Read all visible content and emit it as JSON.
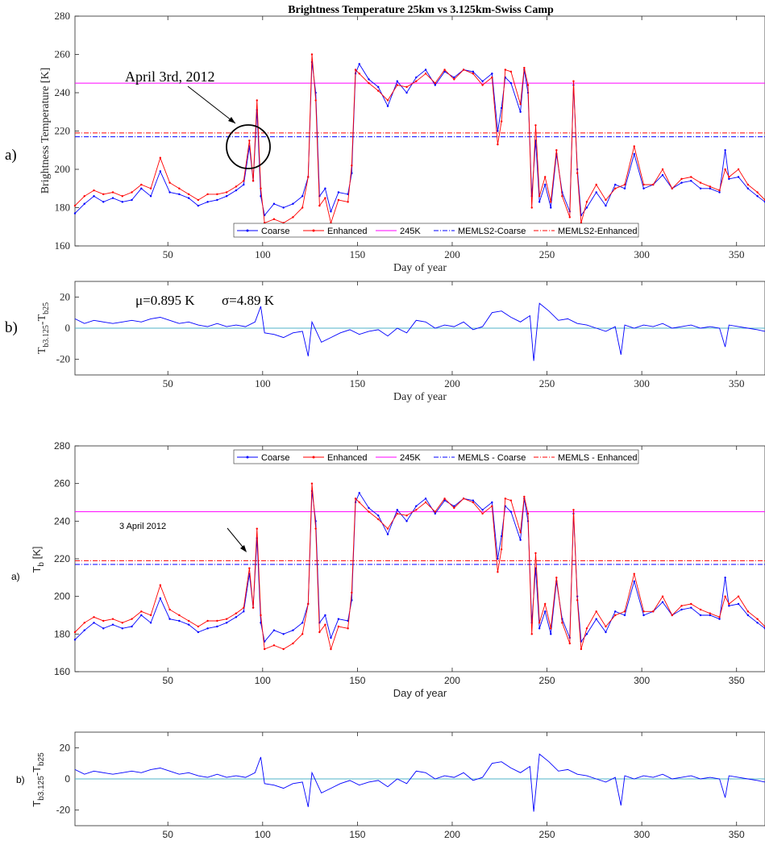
{
  "chart_data": [
    {
      "id": "top_tb",
      "type": "line",
      "title": "Brightness Temperature 25km vs 3.125km-Swiss Camp",
      "panel_label": "a)",
      "xlabel": "Day of year",
      "ylabel": "Brightness Temperature [K]",
      "xlim": [
        1,
        365
      ],
      "ylim": [
        160,
        280
      ],
      "xticks": [
        50,
        100,
        150,
        200,
        250,
        300,
        350
      ],
      "yticks": [
        160,
        180,
        200,
        220,
        240,
        260,
        280
      ],
      "annotation": {
        "text": "April 3rd, 2012",
        "x": 93,
        "y": 216
      },
      "legend": [
        "Coarse",
        "Enhanced",
        "245K",
        "MEMLS2-Coarse",
        "MEMLS2-Enhanced"
      ],
      "legend_position": "bottom-center",
      "colors": {
        "coarse": "#0000ff",
        "enhanced": "#ff0000",
        "ref245": "#ff00ff",
        "memls": "#0000ff",
        "memls_enh": "#ff0000"
      },
      "reference_lines": [
        {
          "name": "245K",
          "y": 245
        },
        {
          "name": "MEMLS2-Coarse",
          "y": 217
        },
        {
          "name": "MEMLS2-Enhanced",
          "y": 219
        }
      ],
      "series_ref": "shared_series"
    },
    {
      "id": "top_diff",
      "type": "line",
      "panel_label": "b)",
      "xlabel": "Day of year",
      "ylabel": "T_b3.125 - T_b25",
      "xlim": [
        1,
        365
      ],
      "ylim": [
        -30,
        30
      ],
      "xticks": [
        50,
        100,
        150,
        200,
        250,
        300,
        350
      ],
      "yticks": [
        -20,
        0,
        20
      ],
      "stats_mu": "μ=0.895 K",
      "stats_sigma": "σ=4.89 K",
      "series_ref": "shared_diff"
    },
    {
      "id": "bottom_tb",
      "type": "line",
      "panel_label": "a)",
      "xlabel": "Day of year",
      "ylabel": "T_b [K]",
      "xlim": [
        1,
        365
      ],
      "ylim": [
        160,
        280
      ],
      "xticks": [
        50,
        100,
        150,
        200,
        250,
        300,
        350
      ],
      "yticks": [
        160,
        180,
        200,
        220,
        240,
        260,
        280
      ],
      "annotation": {
        "text": "3 April 2012",
        "x": 93,
        "y": 221
      },
      "legend": [
        "Coarse",
        "Enhanced",
        "245K",
        "MEMLS - Coarse",
        "MEMLS - Enhanced"
      ],
      "legend_position": "top-center",
      "series_ref": "shared_series"
    },
    {
      "id": "bottom_diff",
      "type": "line",
      "panel_label": "b)",
      "xlabel": "Day of year",
      "ylabel": "T_b3.125 - T_b25",
      "xlim": [
        1,
        365
      ],
      "ylim": [
        -30,
        30
      ],
      "xticks": [
        50,
        100,
        150,
        200,
        250,
        300,
        350
      ],
      "yticks": [
        -20,
        0,
        20
      ],
      "series_ref": "shared_diff"
    }
  ],
  "shared_series": {
    "x": [
      1,
      6,
      11,
      16,
      21,
      26,
      31,
      36,
      41,
      46,
      51,
      56,
      61,
      66,
      71,
      76,
      81,
      86,
      90,
      93,
      95,
      97,
      99,
      101,
      106,
      111,
      116,
      121,
      124,
      126,
      128,
      130,
      133,
      136,
      140,
      145,
      147,
      149,
      151,
      156,
      161,
      166,
      171,
      176,
      181,
      186,
      191,
      196,
      201,
      206,
      211,
      216,
      221,
      224,
      226,
      228,
      231,
      236,
      238,
      240,
      242,
      244,
      246,
      249,
      252,
      255,
      258,
      262,
      264,
      266,
      268,
      271,
      276,
      281,
      286,
      291,
      296,
      301,
      306,
      311,
      316,
      321,
      326,
      331,
      336,
      341,
      344,
      346,
      351,
      356,
      361,
      365
    ],
    "coarse": [
      177,
      182,
      186,
      183,
      185,
      183,
      184,
      190,
      186,
      199,
      188,
      187,
      185,
      181,
      183,
      184,
      186,
      189,
      192,
      212,
      194,
      231,
      186,
      176,
      182,
      180,
      182,
      186,
      196,
      256,
      240,
      186,
      190,
      178,
      188,
      187,
      198,
      250,
      255,
      247,
      243,
      233,
      246,
      240,
      248,
      252,
      244,
      251,
      248,
      252,
      251,
      246,
      250,
      220,
      232,
      248,
      245,
      230,
      252,
      240,
      186,
      215,
      183,
      192,
      180,
      208,
      188,
      178,
      244,
      200,
      176,
      180,
      188,
      181,
      192,
      190,
      208,
      190,
      192,
      197,
      190,
      193,
      194,
      190,
      190,
      188,
      210,
      195,
      196,
      190,
      186,
      183
    ],
    "enhanced": [
      181,
      186,
      189,
      187,
      188,
      186,
      188,
      192,
      190,
      206,
      193,
      190,
      187,
      184,
      187,
      187,
      188,
      191,
      194,
      215,
      194,
      236,
      190,
      172,
      174,
      172,
      175,
      180,
      196,
      260,
      236,
      181,
      185,
      172,
      184,
      183,
      202,
      252,
      250,
      245,
      241,
      236,
      244,
      243,
      246,
      250,
      245,
      252,
      247,
      252,
      250,
      244,
      248,
      213,
      225,
      252,
      251,
      234,
      253,
      244,
      180,
      223,
      186,
      196,
      183,
      210,
      186,
      175,
      246,
      198,
      172,
      183,
      192,
      184,
      190,
      192,
      212,
      192,
      192,
      200,
      190,
      195,
      196,
      193,
      191,
      189,
      200,
      196,
      200,
      192,
      188,
      184
    ]
  },
  "shared_diff": {
    "x": [
      1,
      6,
      11,
      16,
      21,
      26,
      31,
      36,
      41,
      46,
      51,
      56,
      61,
      66,
      71,
      76,
      81,
      86,
      91,
      96,
      99,
      101,
      106,
      111,
      116,
      121,
      124,
      126,
      131,
      136,
      141,
      146,
      151,
      156,
      161,
      166,
      171,
      176,
      181,
      186,
      191,
      196,
      201,
      206,
      211,
      216,
      221,
      226,
      231,
      236,
      241,
      243,
      246,
      251,
      256,
      261,
      266,
      271,
      276,
      281,
      286,
      289,
      291,
      296,
      301,
      306,
      311,
      316,
      321,
      326,
      331,
      336,
      341,
      344,
      346,
      351,
      356,
      361,
      365
    ],
    "values": [
      6,
      3,
      5,
      4,
      3,
      4,
      5,
      4,
      6,
      7,
      5,
      3,
      4,
      2,
      1,
      3,
      1,
      2,
      1,
      4,
      14,
      -3,
      -4,
      -6,
      -3,
      -2,
      -18,
      4,
      -9,
      -6,
      -3,
      -1,
      -4,
      -2,
      -1,
      -5,
      0,
      -3,
      5,
      4,
      0,
      2,
      1,
      4,
      -1,
      1,
      10,
      11,
      7,
      4,
      8,
      -21,
      16,
      11,
      5,
      6,
      3,
      2,
      0,
      -2,
      1,
      -17,
      2,
      0,
      2,
      1,
      3,
      0,
      1,
      2,
      0,
      1,
      0,
      -12,
      2,
      1,
      0,
      -1,
      -2
    ]
  }
}
